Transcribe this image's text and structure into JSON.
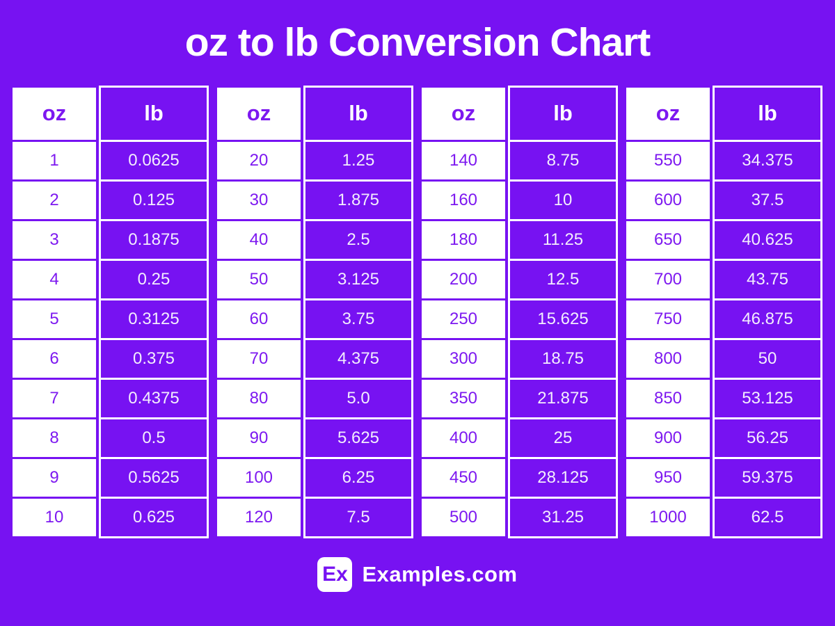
{
  "page": {
    "title": "oz to lb Conversion Chart",
    "background_color": "#7712F2",
    "accent_purple": "#7D18F0",
    "text_white": "#F3EDFD"
  },
  "footer": {
    "logo_text": "Ex",
    "site_name": "Examples.com"
  },
  "chart_data": {
    "type": "table",
    "title": "oz to lb Conversion Chart",
    "columns": [
      "oz",
      "lb"
    ],
    "layout": "4 side-by-side two-column tables; oz column white with purple text, lb column purple with white text and white borders",
    "groups": [
      {
        "rows": [
          [
            "1",
            "0.0625"
          ],
          [
            "2",
            "0.125"
          ],
          [
            "3",
            "0.1875"
          ],
          [
            "4",
            "0.25"
          ],
          [
            "5",
            "0.3125"
          ],
          [
            "6",
            "0.375"
          ],
          [
            "7",
            "0.4375"
          ],
          [
            "8",
            "0.5"
          ],
          [
            "9",
            "0.5625"
          ],
          [
            "10",
            "0.625"
          ]
        ]
      },
      {
        "rows": [
          [
            "20",
            "1.25"
          ],
          [
            "30",
            "1.875"
          ],
          [
            "40",
            "2.5"
          ],
          [
            "50",
            "3.125"
          ],
          [
            "60",
            "3.75"
          ],
          [
            "70",
            "4.375"
          ],
          [
            "80",
            "5.0"
          ],
          [
            "90",
            "5.625"
          ],
          [
            "100",
            "6.25"
          ],
          [
            "120",
            "7.5"
          ]
        ]
      },
      {
        "rows": [
          [
            "140",
            "8.75"
          ],
          [
            "160",
            "10"
          ],
          [
            "180",
            "11.25"
          ],
          [
            "200",
            "12.5"
          ],
          [
            "250",
            "15.625"
          ],
          [
            "300",
            "18.75"
          ],
          [
            "350",
            "21.875"
          ],
          [
            "400",
            "25"
          ],
          [
            "450",
            "28.125"
          ],
          [
            "500",
            "31.25"
          ]
        ]
      },
      {
        "rows": [
          [
            "550",
            "34.375"
          ],
          [
            "600",
            "37.5"
          ],
          [
            "650",
            "40.625"
          ],
          [
            "700",
            "43.75"
          ],
          [
            "750",
            "46.875"
          ],
          [
            "800",
            "50"
          ],
          [
            "850",
            "53.125"
          ],
          [
            "900",
            "56.25"
          ],
          [
            "950",
            "59.375"
          ],
          [
            "1000",
            "62.5"
          ]
        ]
      }
    ]
  }
}
